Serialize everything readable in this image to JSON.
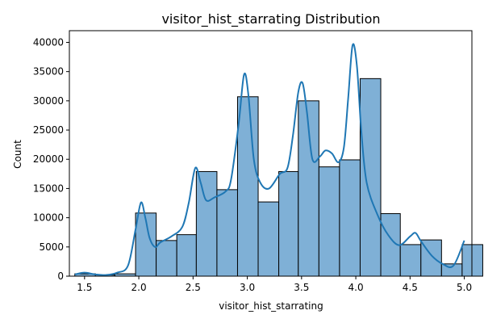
{
  "chart_data": {
    "type": "bar",
    "title": "visitor_hist_starrating Distribution",
    "xlabel": "visitor_hist_starrating",
    "ylabel": "Count",
    "xlim": [
      1.36,
      5.07
    ],
    "ylim": [
      0,
      42000
    ],
    "xticks": [
      "1.5",
      "2.0",
      "2.5",
      "3.0",
      "3.5",
      "4.0",
      "4.5",
      "5.0"
    ],
    "xtick_values": [
      1.5,
      2.0,
      2.5,
      3.0,
      3.5,
      4.0,
      4.5,
      5.0
    ],
    "yticks": [
      "0",
      "5000",
      "10000",
      "15000",
      "20000",
      "25000",
      "30000",
      "35000",
      "40000"
    ],
    "ytick_values": [
      0,
      5000,
      10000,
      15000,
      20000,
      25000,
      30000,
      35000,
      40000
    ],
    "bin_edges": [
      1.41,
      1.6,
      1.78,
      1.97,
      2.16,
      2.35,
      2.53,
      2.72,
      2.91,
      3.1,
      3.29,
      3.47,
      3.66,
      3.85,
      4.04,
      4.23,
      4.41,
      4.6,
      4.79,
      4.98
    ],
    "values": [
      400,
      200,
      400,
      10800,
      6100,
      7100,
      17900,
      14800,
      30700,
      12700,
      17900,
      30000,
      18700,
      19900,
      33800,
      10700,
      5400,
      6200,
      2100,
      5400
    ],
    "kde": [
      [
        1.41,
        300
      ],
      [
        1.5,
        600
      ],
      [
        1.6,
        300
      ],
      [
        1.7,
        200
      ],
      [
        1.8,
        600
      ],
      [
        1.9,
        1800
      ],
      [
        1.97,
        8000
      ],
      [
        2.02,
        12600
      ],
      [
        2.06,
        10000
      ],
      [
        2.1,
        6500
      ],
      [
        2.15,
        5000
      ],
      [
        2.2,
        5800
      ],
      [
        2.3,
        6800
      ],
      [
        2.4,
        8400
      ],
      [
        2.46,
        12500
      ],
      [
        2.52,
        18500
      ],
      [
        2.57,
        16000
      ],
      [
        2.62,
        13000
      ],
      [
        2.7,
        13500
      ],
      [
        2.8,
        14500
      ],
      [
        2.85,
        16500
      ],
      [
        2.92,
        26000
      ],
      [
        2.97,
        34500
      ],
      [
        3.01,
        31000
      ],
      [
        3.06,
        20000
      ],
      [
        3.12,
        16000
      ],
      [
        3.2,
        15000
      ],
      [
        3.3,
        17500
      ],
      [
        3.37,
        18500
      ],
      [
        3.42,
        24000
      ],
      [
        3.47,
        31500
      ],
      [
        3.51,
        33000
      ],
      [
        3.55,
        28000
      ],
      [
        3.6,
        20000
      ],
      [
        3.67,
        20500
      ],
      [
        3.72,
        21500
      ],
      [
        3.78,
        21000
      ],
      [
        3.84,
        19500
      ],
      [
        3.89,
        22000
      ],
      [
        3.93,
        30500
      ],
      [
        3.97,
        39500
      ],
      [
        4.01,
        36000
      ],
      [
        4.05,
        25000
      ],
      [
        4.1,
        16000
      ],
      [
        4.2,
        10500
      ],
      [
        4.3,
        7000
      ],
      [
        4.4,
        5300
      ],
      [
        4.5,
        6800
      ],
      [
        4.55,
        7400
      ],
      [
        4.6,
        6000
      ],
      [
        4.7,
        3500
      ],
      [
        4.8,
        2100
      ],
      [
        4.9,
        1800
      ],
      [
        5.0,
        6100
      ]
    ],
    "bar_color": "#7fb0d6",
    "bar_edge_color": "#000000",
    "line_color": "#1f77b4",
    "grid": false,
    "legend": "none"
  }
}
